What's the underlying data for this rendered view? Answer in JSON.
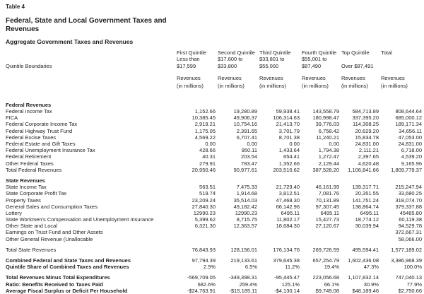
{
  "header": {
    "table_label": "Table 4",
    "title": "Federal, State and Local Government Taxes and Revenues",
    "subtitle": "Aggregate Government Taxes and Revenues",
    "boundaries_label": "Quintile Boundaries"
  },
  "table": {
    "unit_line1": "Revenues",
    "unit_line2": "(in millions)",
    "columns": [
      {
        "name": "First Quintile",
        "range1": "Less than",
        "range2": "$17,599"
      },
      {
        "name": "Second Quintile",
        "range1": "$17,600 to",
        "range2": "$33,800"
      },
      {
        "name": "Third Quintile",
        "range1": "$33,801 to",
        "range2": "$55,000"
      },
      {
        "name": "Fourth Quintile",
        "range1": "$55,001 to",
        "range2": "$87,490"
      },
      {
        "name": "Top Quintile",
        "range1": "",
        "range2": "Over $87,491"
      },
      {
        "name": "Total",
        "range1": "",
        "range2": ""
      }
    ],
    "rows": [
      {
        "type": "section",
        "label": "Federal Revenues"
      },
      {
        "type": "data",
        "label": "Federal Income Tax",
        "values": [
          "1,152.66",
          "19,280.89",
          "59,938.41",
          "143,558.79",
          "584,713.89",
          "808,644.64"
        ]
      },
      {
        "type": "data",
        "label": "FICA",
        "values": [
          "10,385.45",
          "49,906.37",
          "106,314.63",
          "180,998.47",
          "337,395.20",
          "685,000.12"
        ]
      },
      {
        "type": "data",
        "label": "Federal Corporate Income Tax",
        "values": [
          "2,919.21",
          "10,754.16",
          "21,413.70",
          "39,776.03",
          "114,308.25",
          "189,171.34"
        ]
      },
      {
        "type": "data",
        "label": "Federal Highway Trust Fund",
        "values": [
          "1,175.05",
          "2,391.65",
          "3,701.79",
          "6,758.42",
          "20,629.20",
          "34,656.11"
        ]
      },
      {
        "type": "data",
        "label": "Federal Excise Taxes",
        "values": [
          "4,569.22",
          "6,707.41",
          "8,701.38",
          "11,240.21",
          "15,834.78",
          "47,053.00"
        ]
      },
      {
        "type": "data",
        "label": "Federal Estate and Gift Taxes",
        "values": [
          "0.00",
          "0.00",
          "0.00",
          "0.00",
          "24,831.00",
          "24,831.00"
        ]
      },
      {
        "type": "data",
        "label": "Federal Unemployment Insurance Tax",
        "values": [
          "428.66",
          "950.11",
          "1,433.64",
          "1,794.38",
          "2,111.21",
          "6,718.00"
        ]
      },
      {
        "type": "data",
        "label": "Federal Retirement",
        "values": [
          "40.31",
          "203.54",
          "654.41",
          "1,272.47",
          "2,397.65",
          "4,539.20"
        ]
      },
      {
        "type": "data",
        "label": "Other Federal Taxes",
        "values": [
          "279.91",
          "783.47",
          "1,352.66",
          "2,129.44",
          "4,620.48",
          "9,165.96"
        ]
      },
      {
        "type": "data",
        "label": "Total Federal Revenues",
        "values": [
          "20,950.46",
          "90,977.61",
          "203,510.62",
          "387,528.20",
          "1,106,841.66",
          "1,809,779.37"
        ]
      },
      {
        "type": "spacer"
      },
      {
        "type": "section",
        "label": "State Revenues"
      },
      {
        "type": "data",
        "label": "State Income Tax",
        "values": [
          "563.51",
          "7,475.33",
          "21,729.40",
          "46,161.99",
          "139,317.71",
          "215,247.94"
        ]
      },
      {
        "type": "data",
        "label": "State Corporate Profit Tax",
        "values": [
          "519.74",
          "1,914.68",
          "3,812.51",
          "7,081.76",
          "20,351.55",
          "33,680.25"
        ]
      },
      {
        "type": "data",
        "label": "Property Taxes",
        "values": [
          "23,209.24",
          "35,514.03",
          "47,468.30",
          "70,131.89",
          "141,751.24",
          "318,074.70"
        ]
      },
      {
        "type": "data",
        "label": "General Sales and Consumption Taxes",
        "values": [
          "27,840.30",
          "49,182.42",
          "66,142.96",
          "97,307.45",
          "138,864.74",
          "379,337.88"
        ]
      },
      {
        "type": "data",
        "label": "Lottery",
        "values": [
          "12990.23",
          "12990.23",
          "6495.11",
          "6495.11",
          "6495.11",
          "45465.80"
        ]
      },
      {
        "type": "data",
        "label": "State Workmen's Compensation and Unemployment Insurance",
        "values": [
          "5,399.62",
          "8,715.75",
          "11,802.17",
          "15,427.73",
          "18,774.12",
          "60,119.38"
        ]
      },
      {
        "type": "data",
        "label": "Other State and Local",
        "values": [
          "6,321.30",
          "12,363.57",
          "18,684.30",
          "27,120.67",
          "30,039.94",
          "94,529.78"
        ]
      },
      {
        "type": "data",
        "label": "Earnings on Trust Fund and Other Assets",
        "values": [
          "",
          "",
          "",
          "",
          "",
          "372,667.31"
        ]
      },
      {
        "type": "data",
        "label": "Other General Revenue (Unallocable",
        "values": [
          "",
          "",
          "",
          "",
          "",
          "58,066.00"
        ]
      },
      {
        "type": "spacer"
      },
      {
        "type": "data",
        "label": "Total State Revenues",
        "values": [
          "76,843.93",
          "128,156.01",
          "176,134.76",
          "269,726.59",
          "495,594.41",
          "1,577,189.02"
        ]
      },
      {
        "type": "spacer"
      },
      {
        "type": "bold",
        "label": "Combined Federal and State Taxes and Revenues",
        "values": [
          "97,794.39",
          "219,133.61",
          "379,645.38",
          "657,254.79",
          "1,602,436.08",
          "3,386,968.39"
        ]
      },
      {
        "type": "bold",
        "label": "Quintile Share of Combined Taxes and Revenues",
        "values": [
          "2.9%",
          "6.5%",
          "11.2%",
          "19.4%",
          "47.3%",
          "100.0%"
        ]
      },
      {
        "type": "spacer"
      },
      {
        "type": "bold",
        "label": "Total Revenues Minus Total Expenditures",
        "values": [
          "-569,709.05",
          "-349,398.31",
          "-95,445.47",
          "223,056.68",
          "1,107,832.14",
          "747,040.13"
        ]
      },
      {
        "type": "bold",
        "label": "Ratio: Benefits Received to Taxes Paid",
        "values": [
          "682.6%",
          "259.4%",
          "125.1%",
          "66.1%",
          "30.9%",
          "77.9%"
        ]
      },
      {
        "type": "bold",
        "label": "Average Fiscal Surplus or Deficit Per Household",
        "values": [
          "-$24,763.91",
          "-$15,185.11",
          "-$4,130.14",
          "$9,749.08",
          "$48,189.46",
          "$2,750.66"
        ]
      }
    ]
  }
}
